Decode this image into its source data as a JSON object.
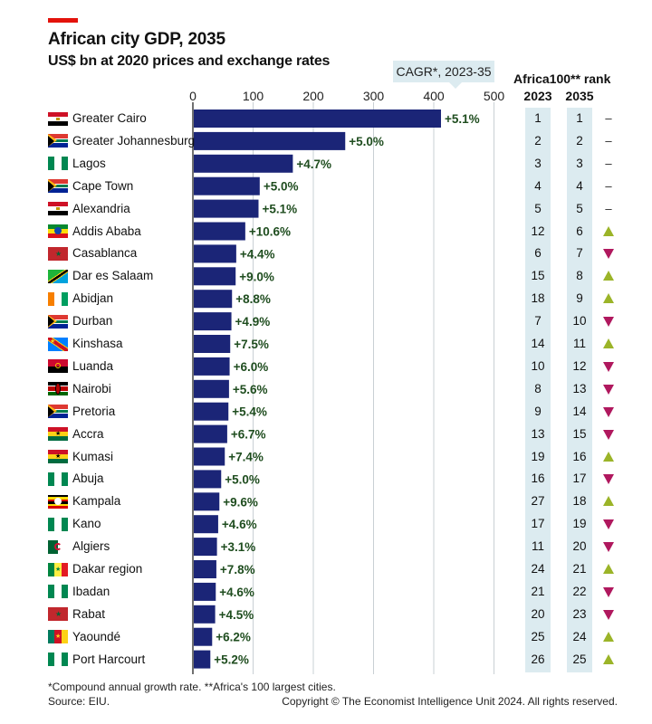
{
  "title": "African city GDP, 2035",
  "subtitle": "US$ bn at 2020 prices and exchange rates",
  "cagr_label": "CAGR*, 2023-35",
  "rank_header": {
    "title": "Africa100** rank",
    "col_2023": "2023",
    "col_2035": "2035"
  },
  "footnote": "*Compound annual growth rate.  **Africa's 100 largest cities.",
  "source": "Source: EIU.",
  "copyright": "Copyright © The Economist Intelligence Unit 2024. All rights reserved.",
  "colors": {
    "bar": "#1b2577",
    "accent_red": "#e3120b",
    "up": "#9bb428",
    "down": "#b0185e",
    "rank_bg": "#dcebf0",
    "growth_text": "#1f4d1f"
  },
  "chart_data": {
    "type": "bar",
    "orientation": "horizontal",
    "xlim": [
      0,
      500
    ],
    "xticks": [
      "0",
      "100",
      "200",
      "300",
      "400",
      "500"
    ],
    "grid": true,
    "rows": [
      {
        "city": "Greater Cairo",
        "flag": "egypt",
        "value": 412,
        "cagr": "+5.1%",
        "rank_2023": "1",
        "rank_2035": "1",
        "trend": "same"
      },
      {
        "city": "Greater Johannesburg",
        "flag": "south-africa",
        "value": 253,
        "cagr": "+5.0%",
        "rank_2023": "2",
        "rank_2035": "2",
        "trend": "same"
      },
      {
        "city": "Lagos",
        "flag": "nigeria",
        "value": 166,
        "cagr": "+4.7%",
        "rank_2023": "3",
        "rank_2035": "3",
        "trend": "same"
      },
      {
        "city": "Cape Town",
        "flag": "south-africa",
        "value": 111,
        "cagr": "+5.0%",
        "rank_2023": "4",
        "rank_2035": "4",
        "trend": "same"
      },
      {
        "city": "Alexandria",
        "flag": "egypt",
        "value": 109,
        "cagr": "+5.1%",
        "rank_2023": "5",
        "rank_2035": "5",
        "trend": "same"
      },
      {
        "city": "Addis Ababa",
        "flag": "ethiopia",
        "value": 87,
        "cagr": "+10.6%",
        "rank_2023": "12",
        "rank_2035": "6",
        "trend": "up"
      },
      {
        "city": "Casablanca",
        "flag": "morocco",
        "value": 72,
        "cagr": "+4.4%",
        "rank_2023": "6",
        "rank_2035": "7",
        "trend": "down"
      },
      {
        "city": "Dar es Salaam",
        "flag": "tanzania",
        "value": 71,
        "cagr": "+9.0%",
        "rank_2023": "15",
        "rank_2035": "8",
        "trend": "up"
      },
      {
        "city": "Abidjan",
        "flag": "ivory-coast",
        "value": 65,
        "cagr": "+8.8%",
        "rank_2023": "18",
        "rank_2035": "9",
        "trend": "up"
      },
      {
        "city": "Durban",
        "flag": "south-africa",
        "value": 64,
        "cagr": "+4.9%",
        "rank_2023": "7",
        "rank_2035": "10",
        "trend": "down"
      },
      {
        "city": "Kinshasa",
        "flag": "dr-congo",
        "value": 62,
        "cagr": "+7.5%",
        "rank_2023": "14",
        "rank_2035": "11",
        "trend": "up"
      },
      {
        "city": "Luanda",
        "flag": "angola",
        "value": 61,
        "cagr": "+6.0%",
        "rank_2023": "10",
        "rank_2035": "12",
        "trend": "down"
      },
      {
        "city": "Nairobi",
        "flag": "kenya",
        "value": 60,
        "cagr": "+5.6%",
        "rank_2023": "8",
        "rank_2035": "13",
        "trend": "down"
      },
      {
        "city": "Pretoria",
        "flag": "south-africa",
        "value": 59,
        "cagr": "+5.4%",
        "rank_2023": "9",
        "rank_2035": "14",
        "trend": "down"
      },
      {
        "city": "Accra",
        "flag": "ghana",
        "value": 57,
        "cagr": "+6.7%",
        "rank_2023": "13",
        "rank_2035": "15",
        "trend": "down"
      },
      {
        "city": "Kumasi",
        "flag": "ghana",
        "value": 53,
        "cagr": "+7.4%",
        "rank_2023": "19",
        "rank_2035": "16",
        "trend": "up"
      },
      {
        "city": "Abuja",
        "flag": "nigeria",
        "value": 47,
        "cagr": "+5.0%",
        "rank_2023": "16",
        "rank_2035": "17",
        "trend": "down"
      },
      {
        "city": "Kampala",
        "flag": "uganda",
        "value": 44,
        "cagr": "+9.6%",
        "rank_2023": "27",
        "rank_2035": "18",
        "trend": "up"
      },
      {
        "city": "Kano",
        "flag": "nigeria",
        "value": 42,
        "cagr": "+4.6%",
        "rank_2023": "17",
        "rank_2035": "19",
        "trend": "down"
      },
      {
        "city": "Algiers",
        "flag": "algeria",
        "value": 40,
        "cagr": "+3.1%",
        "rank_2023": "11",
        "rank_2035": "20",
        "trend": "down"
      },
      {
        "city": "Dakar region",
        "flag": "senegal",
        "value": 39,
        "cagr": "+7.8%",
        "rank_2023": "24",
        "rank_2035": "21",
        "trend": "up"
      },
      {
        "city": "Ibadan",
        "flag": "nigeria",
        "value": 38,
        "cagr": "+4.6%",
        "rank_2023": "21",
        "rank_2035": "22",
        "trend": "down"
      },
      {
        "city": "Rabat",
        "flag": "morocco",
        "value": 37,
        "cagr": "+4.5%",
        "rank_2023": "20",
        "rank_2035": "23",
        "trend": "down"
      },
      {
        "city": "Yaoundé",
        "flag": "cameroon",
        "value": 32,
        "cagr": "+6.2%",
        "rank_2023": "25",
        "rank_2035": "24",
        "trend": "up"
      },
      {
        "city": "Port Harcourt",
        "flag": "nigeria",
        "value": 29,
        "cagr": "+5.2%",
        "rank_2023": "26",
        "rank_2035": "25",
        "trend": "up"
      }
    ]
  }
}
